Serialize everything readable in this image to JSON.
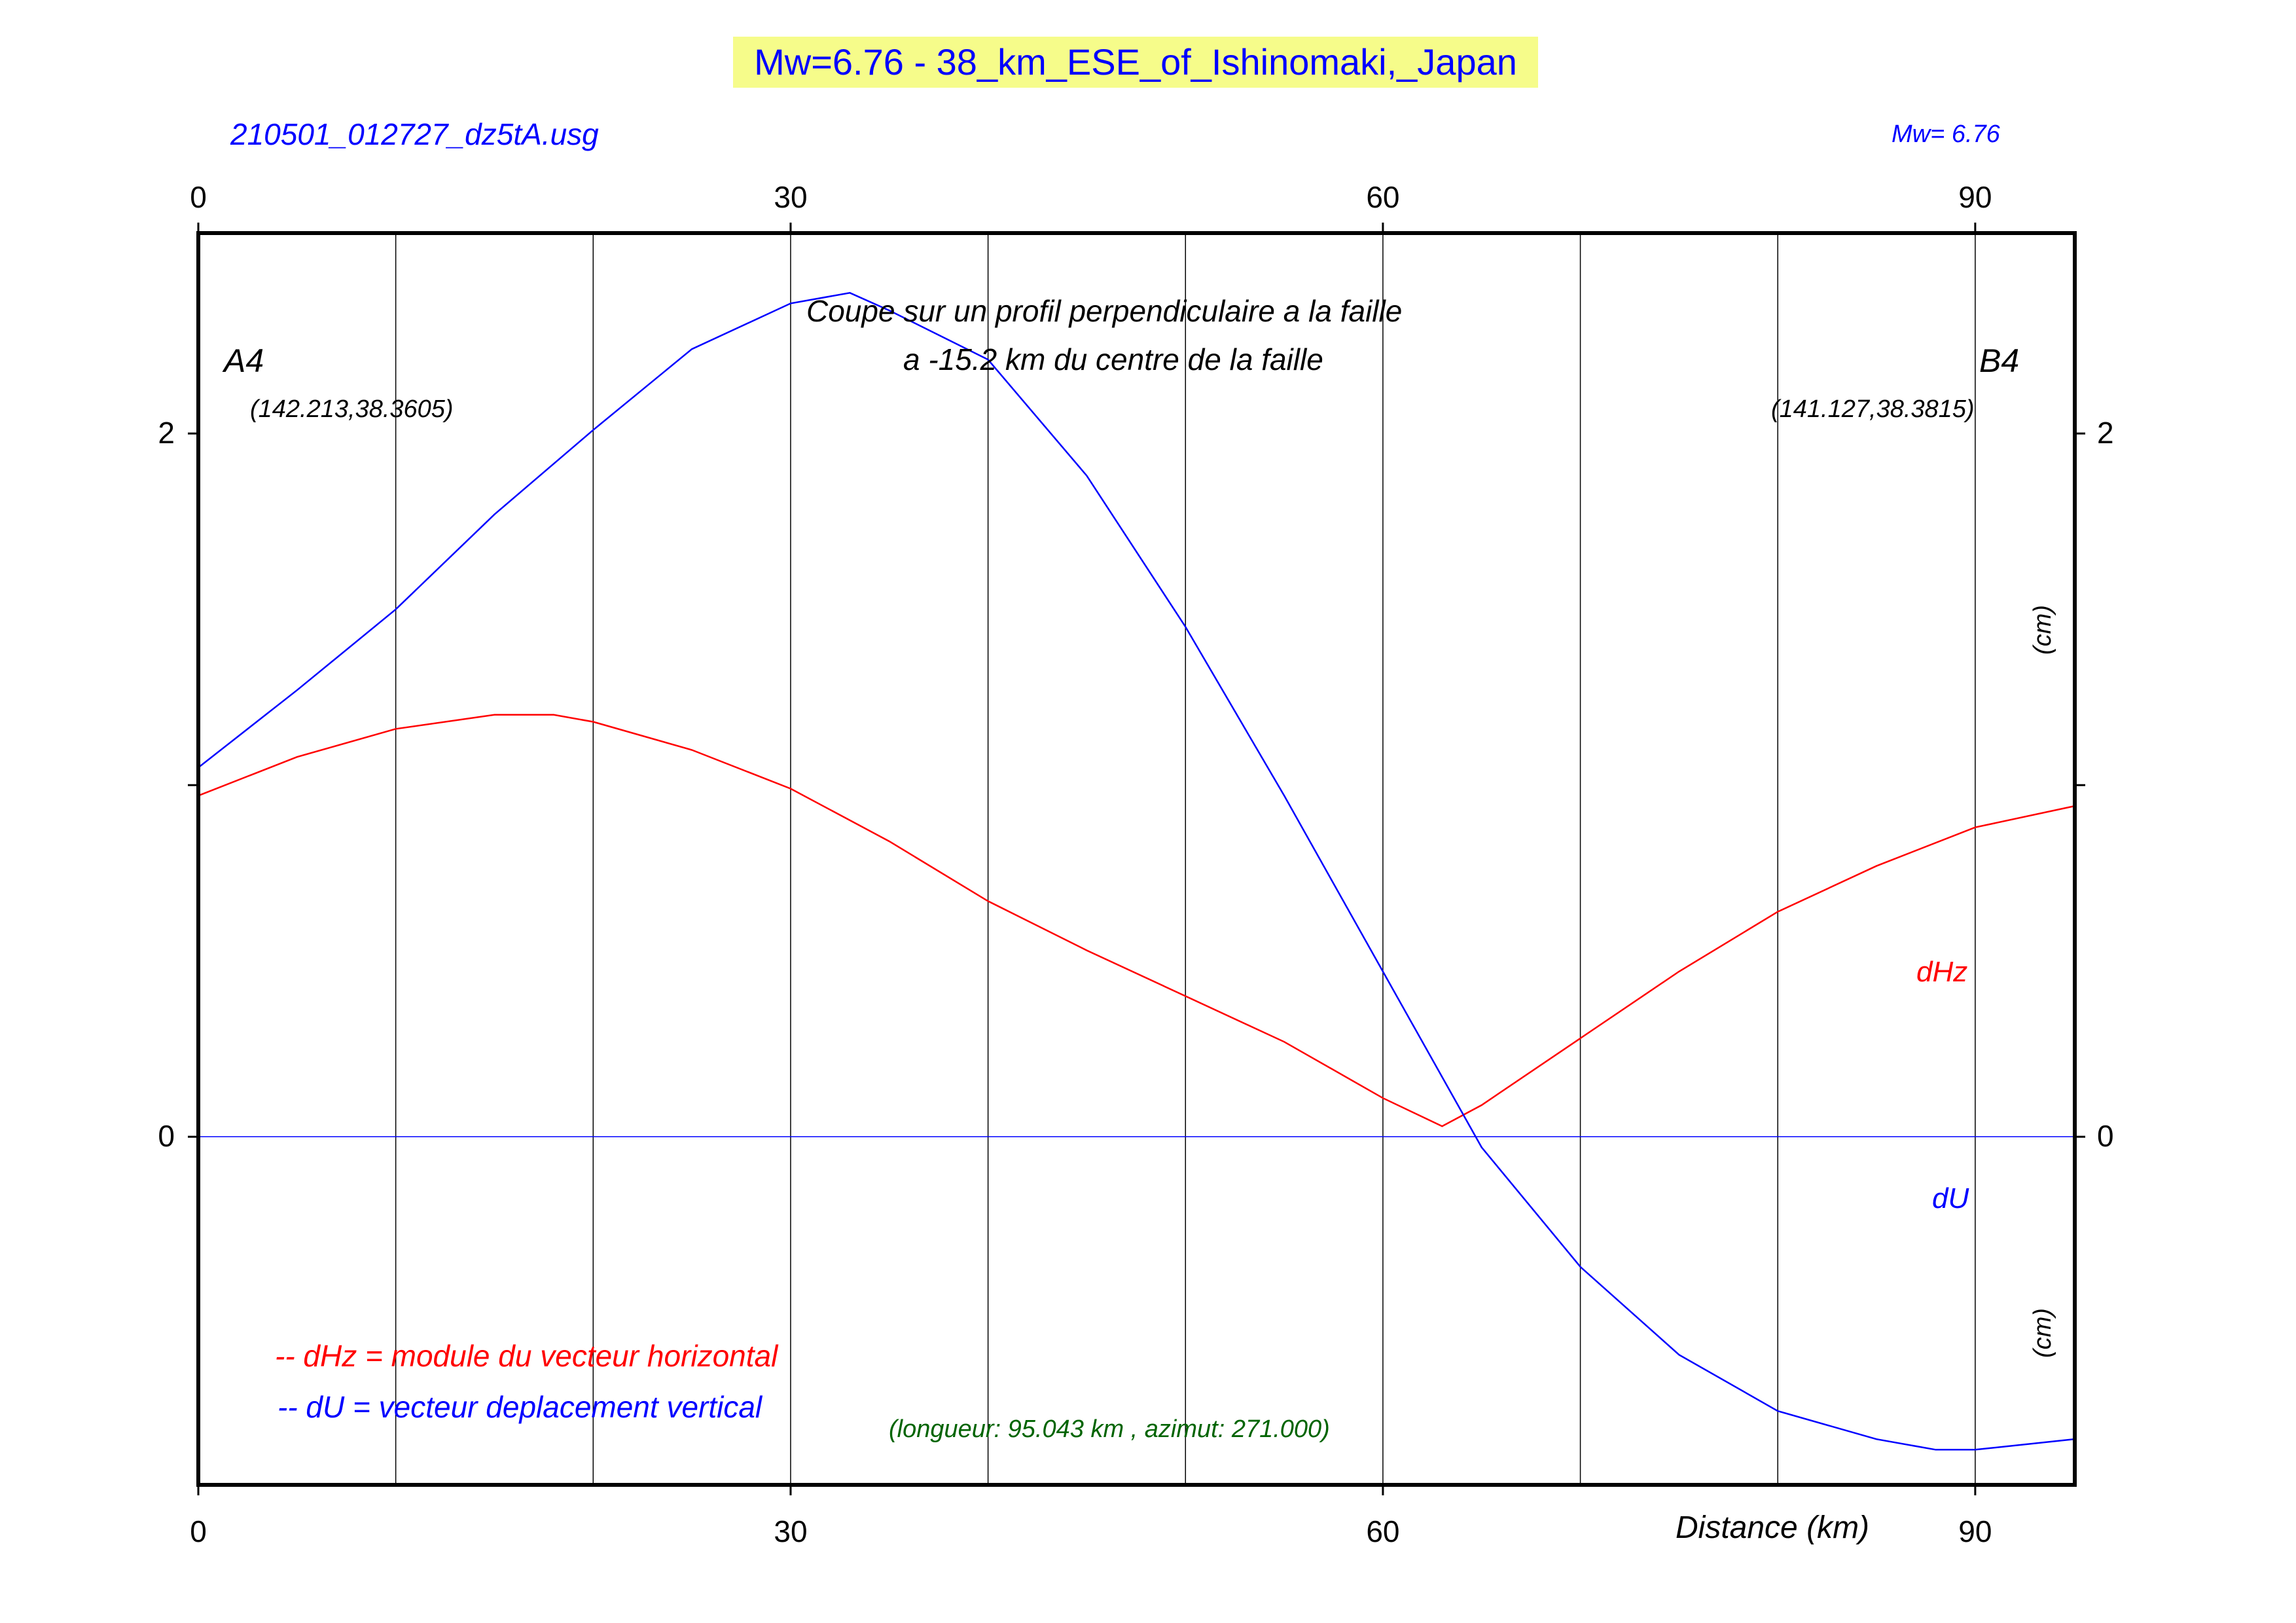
{
  "header": {
    "title": "Mw=6.76 - 38_km_ESE_of_Ishinomaki,_Japan",
    "file_label": "210501_012727_dz5tA.usg",
    "mw_label": "Mw= 6.76"
  },
  "profile": {
    "caption_line1": "Coupe sur un profil perpendiculaire a la faille",
    "caption_line2": "a -15.2 km du centre de la faille",
    "start_label": "A4",
    "start_coords": "(142.213,38.3605)",
    "end_label": "B4",
    "end_coords": "(141.127,38.3815)",
    "length_azimuth": "(longueur: 95.043 km , azimut: 271.000)"
  },
  "legend": {
    "dhz_text": "-- dHz = module du vecteur horizontal",
    "du_text": "-- dU =  vecteur deplacement vertical"
  },
  "colors": {
    "dHz": "#ff0000",
    "dU": "#0000ff",
    "title_bg": "#f6fc8a",
    "info": "#006400"
  },
  "chart_data": {
    "type": "line",
    "xlabel": "Distance (km)",
    "ylabel_right": "(cm)",
    "ylabel_right_lower": "(cm)",
    "xlim": [
      0,
      95.043
    ],
    "ylim": [
      -0.99,
      2.57
    ],
    "x_ticks": [
      0,
      30,
      60,
      90
    ],
    "x_tick_labels": [
      "0",
      "30",
      "60",
      "90"
    ],
    "y_ticks": [
      0,
      2
    ],
    "y_tick_labels": [
      "0",
      "2"
    ],
    "vertical_gridlines": [
      10,
      20,
      30,
      40,
      50,
      60,
      70,
      80,
      90
    ],
    "zero_line": 0,
    "series": [
      {
        "name": "dHz",
        "label": "dHz",
        "x": [
          0,
          5,
          10,
          15,
          18,
          20,
          25,
          30,
          35,
          40,
          45,
          50,
          55,
          60,
          63,
          65,
          70,
          75,
          80,
          85,
          90,
          95
        ],
        "y": [
          0.97,
          1.08,
          1.16,
          1.2,
          1.2,
          1.18,
          1.1,
          0.99,
          0.84,
          0.67,
          0.53,
          0.4,
          0.27,
          0.11,
          0.03,
          0.09,
          0.28,
          0.47,
          0.64,
          0.77,
          0.88,
          0.94
        ]
      },
      {
        "name": "dU",
        "label": "dU",
        "x": [
          0,
          5,
          10,
          15,
          20,
          25,
          30,
          33,
          35,
          40,
          45,
          50,
          55,
          60,
          65,
          70,
          75,
          80,
          85,
          88,
          90,
          95
        ],
        "y": [
          1.05,
          1.27,
          1.5,
          1.77,
          2.01,
          2.24,
          2.37,
          2.4,
          2.35,
          2.21,
          1.88,
          1.45,
          0.97,
          0.47,
          -0.03,
          -0.37,
          -0.62,
          -0.78,
          -0.86,
          -0.89,
          -0.89,
          -0.86
        ]
      }
    ]
  }
}
